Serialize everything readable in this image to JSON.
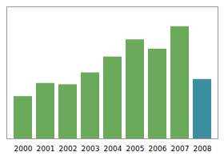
{
  "chart_data": {
    "type": "bar",
    "categories": [
      "2000",
      "2001",
      "2002",
      "2003",
      "2004",
      "2005",
      "2006",
      "2007",
      "2008"
    ],
    "values": [
      3.2,
      4.2,
      4.1,
      5.0,
      6.2,
      7.5,
      6.8,
      8.5,
      4.5
    ],
    "colors": [
      "#6aaa5a",
      "#6aaa5a",
      "#6aaa5a",
      "#6aaa5a",
      "#6aaa5a",
      "#6aaa5a",
      "#6aaa5a",
      "#6aaa5a",
      "#3a8fa0"
    ],
    "ylim": [
      0,
      10
    ],
    "yticks": [],
    "grid": false,
    "tick_labels": "x"
  }
}
